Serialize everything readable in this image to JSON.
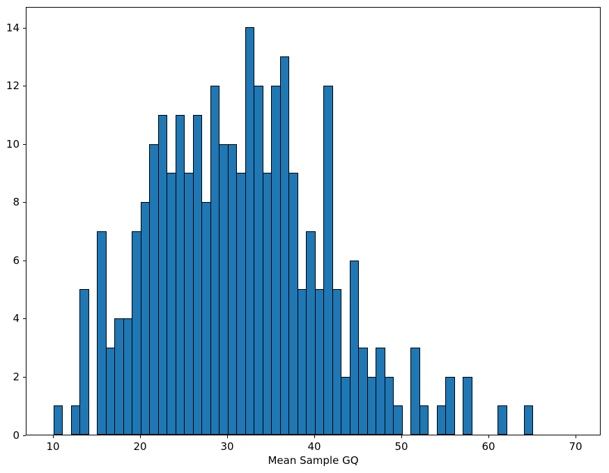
{
  "chart_data": {
    "type": "bar",
    "subtype": "histogram",
    "title": "",
    "xlabel": "Mean Sample GQ",
    "ylabel": "",
    "bin_start": 10,
    "bin_width": 1,
    "counts": [
      1,
      0,
      1,
      5,
      0,
      7,
      3,
      4,
      4,
      7,
      8,
      10,
      11,
      9,
      11,
      9,
      11,
      8,
      12,
      10,
      10,
      9,
      14,
      12,
      9,
      12,
      13,
      9,
      5,
      7,
      5,
      12,
      5,
      2,
      6,
      3,
      2,
      3,
      2,
      1,
      0,
      3,
      1,
      0,
      1,
      2,
      0,
      2,
      0,
      0,
      0,
      1,
      0,
      0,
      1,
      0,
      0,
      0,
      0,
      0
    ],
    "xticks": [
      10,
      20,
      30,
      40,
      50,
      60,
      70
    ],
    "yticks": [
      0,
      2,
      4,
      6,
      8,
      10,
      12,
      14
    ],
    "xlim": [
      6.88,
      72.88
    ],
    "ylim": [
      0,
      14.73
    ],
    "grid": false,
    "legend": null,
    "bar_color": "#1f77b4",
    "bar_edge_color": "#000000",
    "background_color": "#ffffff",
    "text_color": "#000000"
  }
}
